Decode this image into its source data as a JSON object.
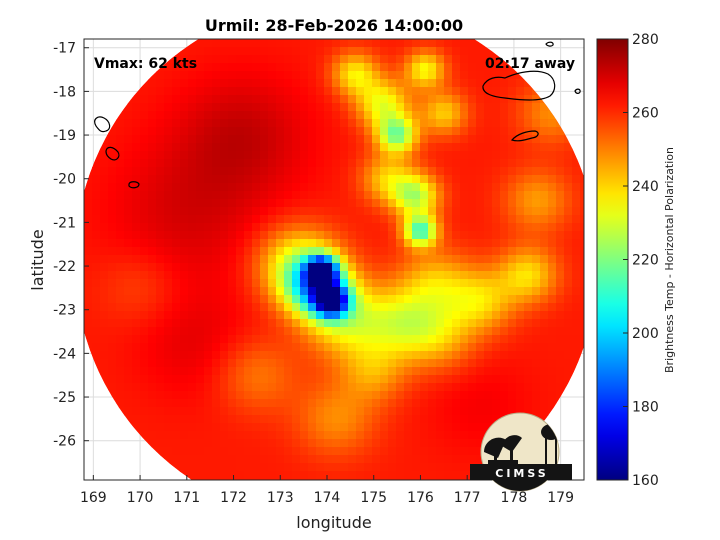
{
  "chart_data": {
    "type": "heatmap",
    "title": "Urmil: 28-Feb-2026 14:00:00",
    "xlabel": "longitude",
    "ylabel": "latitude",
    "xlim": [
      168.8,
      179.5
    ],
    "ylim": [
      -26.9,
      -16.8
    ],
    "xticks": [
      169,
      170,
      171,
      172,
      173,
      174,
      175,
      176,
      177,
      178,
      179
    ],
    "yticks": [
      -17,
      -18,
      -19,
      -20,
      -21,
      -22,
      -23,
      -24,
      -25,
      -26
    ],
    "grid": true,
    "colorbar": {
      "label": "Brightness Temp - Horizontal Polarization",
      "range": [
        160,
        280
      ],
      "ticks": [
        160,
        180,
        200,
        220,
        240,
        260,
        280
      ],
      "colormap": "jet"
    },
    "annotations": {
      "vmax": "Vmax: 62 kts",
      "time_away": "02:17 away"
    },
    "swath": {
      "center_lon": 174.2,
      "center_lat": -21.9,
      "radius_deg": 5.6
    },
    "background_temp": 262,
    "features": [
      {
        "lon": 173.9,
        "lat": -22.1,
        "value": 184,
        "spread": 0.22
      },
      {
        "lon": 174.1,
        "lat": -22.8,
        "value": 190,
        "spread": 0.25
      },
      {
        "lon": 173.8,
        "lat": -22.5,
        "value": 205,
        "spread": 0.45
      },
      {
        "lon": 173.4,
        "lat": -22.0,
        "value": 228,
        "spread": 0.6
      },
      {
        "lon": 174.4,
        "lat": -23.2,
        "value": 232,
        "spread": 0.6
      },
      {
        "lon": 176.0,
        "lat": -21.2,
        "value": 212,
        "spread": 0.25
      },
      {
        "lon": 175.9,
        "lat": -20.4,
        "value": 226,
        "spread": 0.35
      },
      {
        "lon": 175.5,
        "lat": -19.0,
        "value": 220,
        "spread": 0.3
      },
      {
        "lon": 175.2,
        "lat": -18.3,
        "value": 232,
        "spread": 0.4
      },
      {
        "lon": 174.6,
        "lat": -17.6,
        "value": 236,
        "spread": 0.35
      },
      {
        "lon": 176.1,
        "lat": -17.5,
        "value": 234,
        "spread": 0.3
      },
      {
        "lon": 176.5,
        "lat": -18.5,
        "value": 240,
        "spread": 0.35
      },
      {
        "lon": 175.3,
        "lat": -20.0,
        "value": 240,
        "spread": 0.4
      },
      {
        "lon": 176.3,
        "lat": -22.4,
        "value": 242,
        "spread": 0.55
      },
      {
        "lon": 177.3,
        "lat": -22.8,
        "value": 240,
        "spread": 0.5
      },
      {
        "lon": 178.3,
        "lat": -22.2,
        "value": 238,
        "spread": 0.45
      },
      {
        "lon": 175.6,
        "lat": -23.3,
        "value": 238,
        "spread": 0.55
      },
      {
        "lon": 176.4,
        "lat": -23.6,
        "value": 244,
        "spread": 0.55
      },
      {
        "lon": 175.0,
        "lat": -24.4,
        "value": 246,
        "spread": 0.5
      },
      {
        "lon": 174.2,
        "lat": -25.5,
        "value": 248,
        "spread": 0.6
      },
      {
        "lon": 178.5,
        "lat": -20.5,
        "value": 246,
        "spread": 0.5
      },
      {
        "lon": 178.8,
        "lat": -18.5,
        "value": 248,
        "spread": 0.5
      },
      {
        "lon": 172.5,
        "lat": -24.5,
        "value": 250,
        "spread": 0.6
      },
      {
        "lon": 171.0,
        "lat": -20.8,
        "value": 270,
        "spread": 1.2
      },
      {
        "lon": 172.2,
        "lat": -19.0,
        "value": 272,
        "spread": 1.0
      },
      {
        "lon": 171.2,
        "lat": -23.8,
        "value": 268,
        "spread": 0.9
      },
      {
        "lon": 177.3,
        "lat": -25.2,
        "value": 266,
        "spread": 0.8
      },
      {
        "lon": 170.0,
        "lat": -22.5,
        "value": 256,
        "spread": 0.6
      }
    ]
  }
}
